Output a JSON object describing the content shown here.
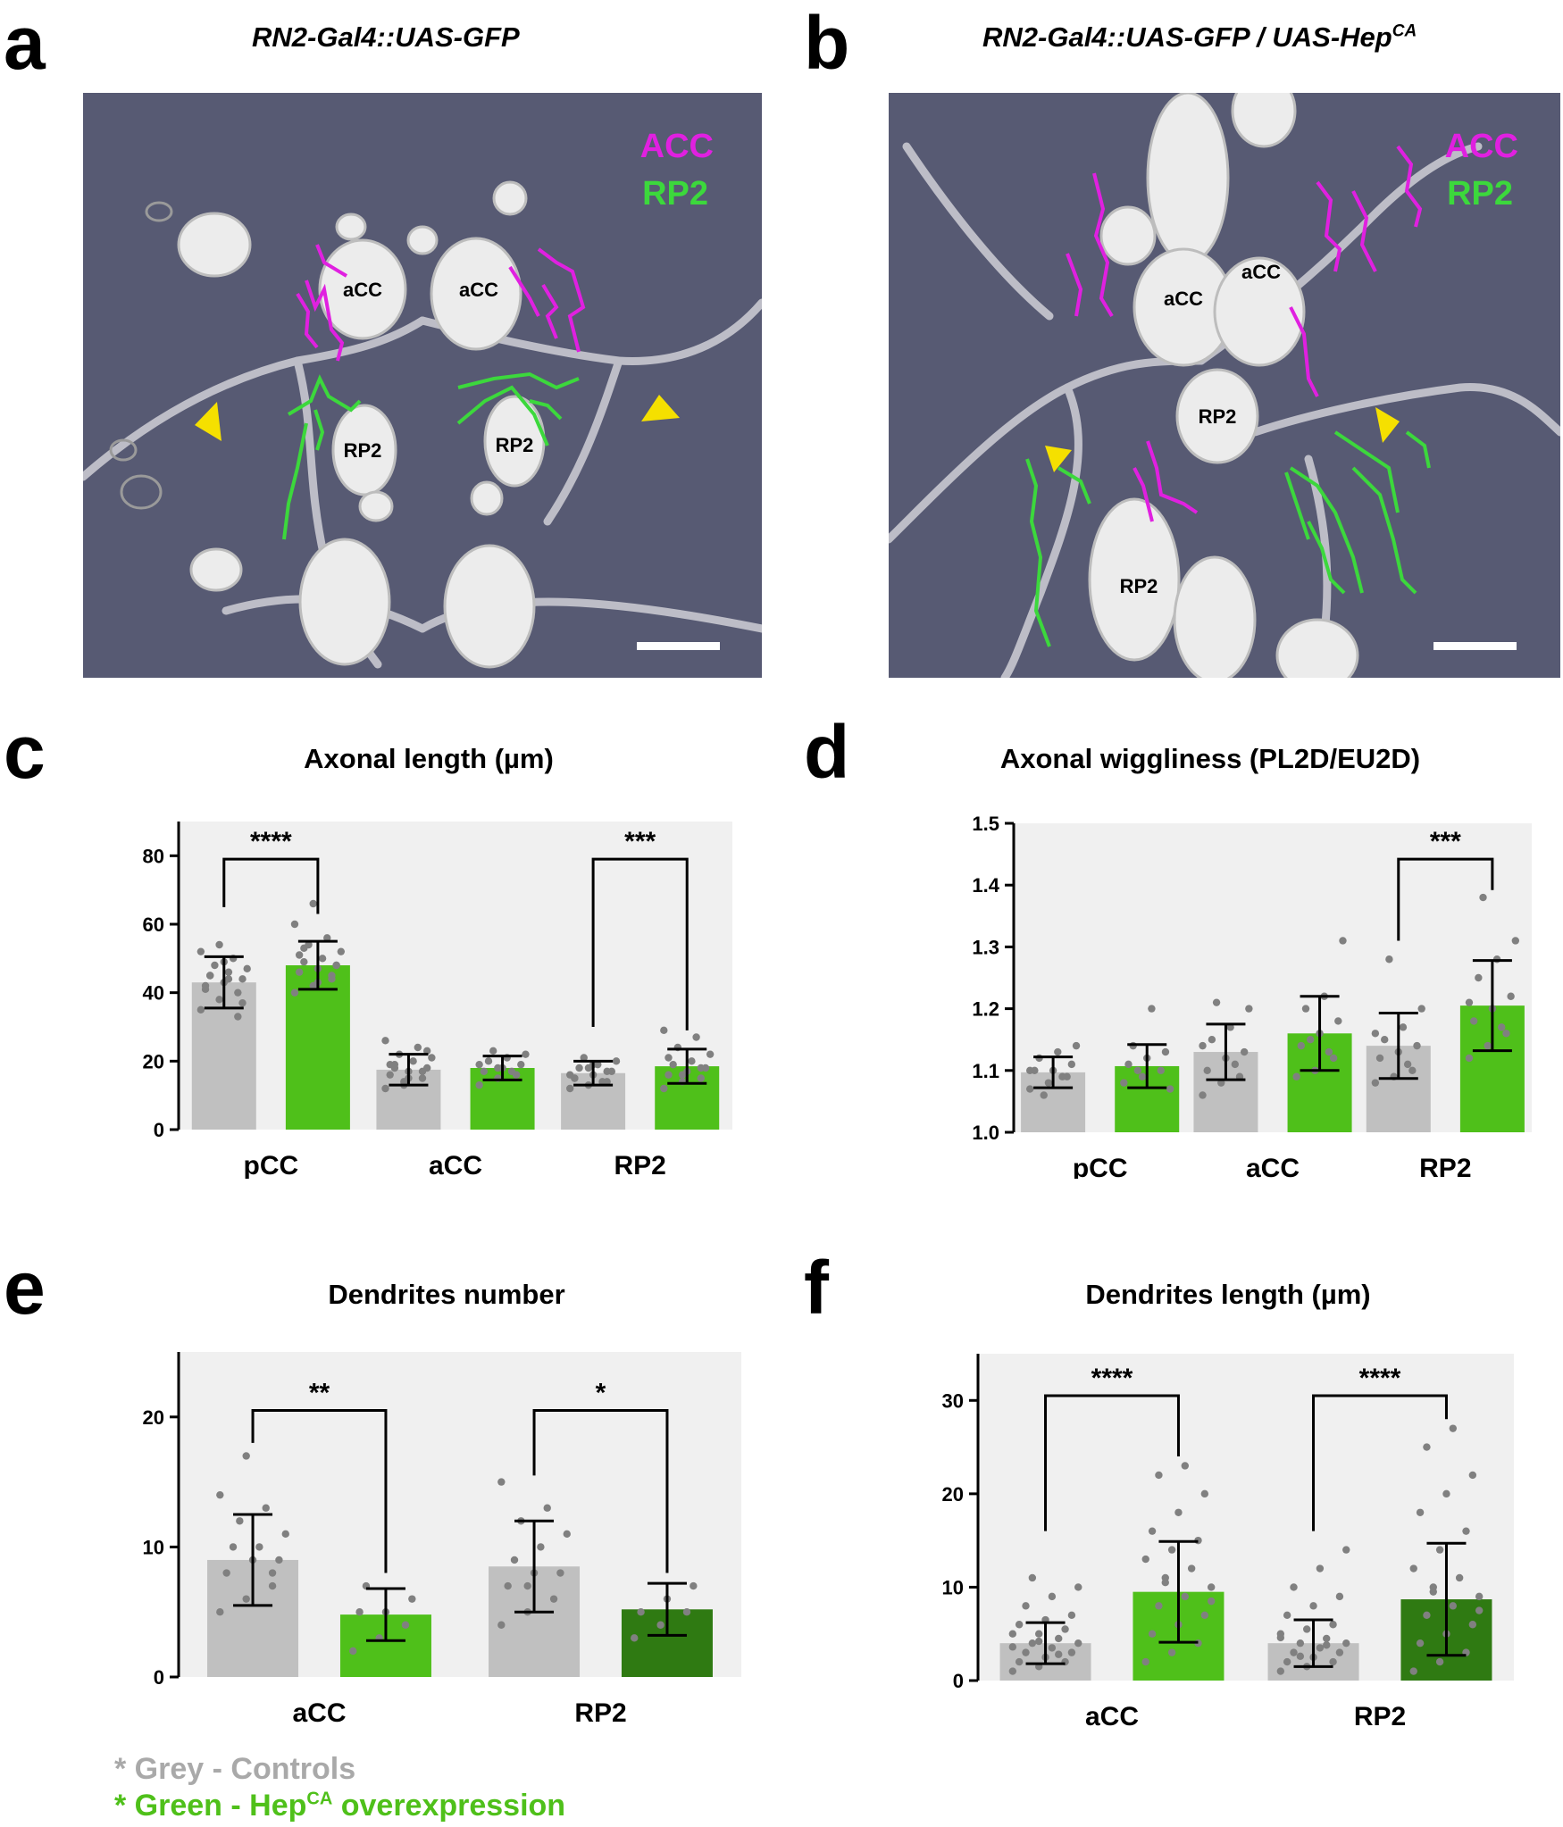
{
  "panels": {
    "a": {
      "letter": "a",
      "title": "RN2-Gal4::UAS-GFP",
      "labels": {
        "cell1": "aCC",
        "cell2": "aCC",
        "cell3": "RP2",
        "cell4": "RP2"
      },
      "legend_acc": "ACC",
      "legend_rp2": "RP2"
    },
    "b": {
      "letter": "b",
      "title_main": "RN2-Gal4::UAS-GFP /  UAS-Hep",
      "title_sup": "CA",
      "labels": {
        "cell1": "aCC",
        "cell2": "aCC",
        "cell3": "RP2",
        "cell4": "RP2"
      },
      "legend_acc": "ACC",
      "legend_rp2": "RP2"
    }
  },
  "colors": {
    "control_grey": "#c0c0c0",
    "green": "#4fc01a",
    "dark_green": "#2f7a12",
    "dots": "#808080",
    "magenta": "#e020e0",
    "gfp_green": "#3cd83c",
    "arrow_yellow": "#f5e000",
    "plot_bg": "#f0f0f0"
  },
  "chart_data": [
    {
      "letter": "c",
      "type": "bar",
      "title": "Axonal length (µm)",
      "categories": [
        "pCC",
        "aCC",
        "RP2"
      ],
      "ylim": [
        0,
        90
      ],
      "yticks": [
        "0",
        "20",
        "40",
        "60",
        "80"
      ],
      "series": [
        {
          "name": "Controls",
          "values": [
            43,
            17.5,
            16.5
          ],
          "sd": [
            7.5,
            4.5,
            3.5
          ],
          "color": "#c0c0c0",
          "points": [
            [
              35,
              38,
              40,
              42,
              43,
              44,
              45,
              46,
              47,
              48,
              50,
              52,
              54,
              33,
              41,
              49,
              37,
              45,
              44
            ],
            [
              12,
              14,
              15,
              16,
              17,
              18,
              19,
              20,
              21,
              22,
              24,
              26,
              13,
              17,
              19,
              15,
              23,
              18
            ],
            [
              12,
              13,
              14,
              15,
              16,
              17,
              18,
              19,
              20,
              21,
              14,
              16,
              18,
              17,
              15,
              19
            ]
          ]
        },
        {
          "name": "HepCA overexpression",
          "values": [
            48,
            18,
            18.5
          ],
          "sd": [
            7,
            3.5,
            5
          ],
          "color": "#4fc01a",
          "points": [
            [
              40,
              42,
              44,
              46,
              47,
              48,
              49,
              50,
              52,
              54,
              56,
              60,
              66,
              45,
              51,
              43,
              48,
              53
            ],
            [
              13,
              15,
              16,
              17,
              18,
              19,
              20,
              21,
              22,
              23,
              17,
              19,
              18,
              16
            ],
            [
              12,
              14,
              15,
              16,
              17,
              18,
              19,
              20,
              22,
              24,
              27,
              29,
              16,
              18,
              21
            ]
          ]
        }
      ],
      "brackets": [
        {
          "from": 0,
          "to": 0,
          "label": "****",
          "y_top": 79,
          "y_left": 65,
          "y_right": 63
        },
        {
          "from": 2,
          "to": 2,
          "label": "***",
          "y_top": 79,
          "y_left": 30,
          "y_right": 29
        }
      ]
    },
    {
      "letter": "d",
      "type": "bar",
      "title": "Axonal wiggliness (PL2D/EU2D)",
      "categories": [
        "pCC",
        "aCC",
        "RP2"
      ],
      "ylim": [
        1.0,
        1.5
      ],
      "yticks": [
        "1.0",
        "1.1",
        "1.2",
        "1.3",
        "1.4",
        "1.5"
      ],
      "series": [
        {
          "name": "Controls",
          "values": [
            1.097,
            1.13,
            1.14
          ],
          "sd": [
            0.025,
            0.045,
            0.053
          ],
          "color": "#c0c0c0",
          "points": [
            [
              1.07,
              1.08,
              1.09,
              1.1,
              1.1,
              1.11,
              1.12,
              1.13,
              1.14,
              1.06,
              1.09,
              1.1
            ],
            [
              1.06,
              1.08,
              1.09,
              1.1,
              1.12,
              1.13,
              1.15,
              1.17,
              1.2,
              1.21,
              1.11,
              1.14
            ],
            [
              1.08,
              1.09,
              1.1,
              1.12,
              1.13,
              1.14,
              1.15,
              1.17,
              1.2,
              1.28,
              1.11,
              1.16
            ]
          ]
        },
        {
          "name": "HepCA overexpression",
          "values": [
            1.107,
            1.16,
            1.205
          ],
          "sd": [
            0.035,
            0.06,
            0.073
          ],
          "color": "#4fc01a",
          "points": [
            [
              1.08,
              1.09,
              1.1,
              1.11,
              1.12,
              1.13,
              1.14,
              1.2,
              1.07,
              1.1
            ],
            [
              1.09,
              1.1,
              1.12,
              1.14,
              1.16,
              1.18,
              1.2,
              1.22,
              1.31,
              1.15,
              1.13
            ],
            [
              1.12,
              1.14,
              1.16,
              1.18,
              1.2,
              1.22,
              1.25,
              1.28,
              1.31,
              1.38,
              1.17,
              1.21
            ]
          ]
        }
      ],
      "brackets": [
        {
          "from": 2,
          "to": 2,
          "label": "***",
          "y_top": 1.442,
          "y_left": 1.31,
          "y_right": 1.392
        }
      ]
    },
    {
      "letter": "e",
      "type": "bar",
      "title": "Dendrites number",
      "categories": [
        "aCC",
        "RP2"
      ],
      "ylim": [
        0,
        25
      ],
      "yticks": [
        "0",
        "10",
        "20"
      ],
      "series": [
        {
          "name": "Controls",
          "values": [
            9,
            8.5
          ],
          "sd": [
            3.5,
            3.5
          ],
          "color": "#c0c0c0",
          "points": [
            [
              5,
              6,
              7,
              8,
              9,
              9,
              10,
              10,
              11,
              12,
              13,
              14,
              17,
              8
            ],
            [
              4,
              5,
              6,
              7,
              8,
              8,
              9,
              10,
              11,
              12,
              13,
              15,
              7
            ]
          ]
        },
        {
          "name": "HepCA overexpression",
          "values": [
            4.8,
            5.2
          ],
          "sd": [
            2,
            2
          ],
          "color": "#4fc01a",
          "points": [
            [
              2,
              3,
              4,
              5,
              5,
              6,
              7
            ],
            [
              3,
              4,
              5,
              5,
              6,
              7
            ]
          ],
          "colors": [
            "#4fc01a",
            "#2f7a12"
          ]
        }
      ],
      "brackets": [
        {
          "from": 0,
          "to": 0,
          "label": "**",
          "y_top": 20.5,
          "y_left": 18,
          "y_right": 8
        },
        {
          "from": 1,
          "to": 1,
          "label": "*",
          "y_top": 20.5,
          "y_left": 15.5,
          "y_right": 8
        }
      ]
    },
    {
      "letter": "f",
      "type": "bar",
      "title": "Dendrites length (µm)",
      "categories": [
        "aCC",
        "RP2"
      ],
      "ylim": [
        0,
        35
      ],
      "yticks": [
        "0",
        "10",
        "20",
        "30"
      ],
      "series": [
        {
          "name": "Controls",
          "values": [
            4,
            4
          ],
          "sd": [
            2.2,
            2.5
          ],
          "color": "#c0c0c0",
          "points": [
            [
              1,
              1.5,
              2,
              2,
              2.5,
              3,
              3,
              3.5,
              4,
              4,
              4.5,
              5,
              5,
              5.5,
              6,
              6.5,
              7,
              8,
              9,
              10,
              11,
              2.8,
              3.6,
              4.2
            ],
            [
              1,
              1.5,
              2,
              2,
              2.5,
              3,
              3,
              3.5,
              4,
              4,
              4.5,
              5,
              5.5,
              6,
              7,
              8,
              9,
              10,
              12,
              14,
              2.6,
              3.8,
              4.6
            ]
          ]
        },
        {
          "name": "HepCA overexpression",
          "values": [
            9.5,
            8.7
          ],
          "sd": [
            5.4,
            6
          ],
          "color": "#4fc01a",
          "points": [
            [
              2,
              3,
              4,
              5,
              6,
              7,
              8,
              9,
              10,
              11,
              12,
              13,
              14,
              15,
              16,
              18,
              20,
              22,
              23,
              8.5,
              10.5
            ],
            [
              1,
              2,
              3,
              4,
              5,
              6,
              7,
              8,
              9,
              10,
              11,
              12,
              14,
              16,
              18,
              20,
              22,
              25,
              27,
              7.5,
              9.5
            ]
          ],
          "colors": [
            "#4fc01a",
            "#2f7a12"
          ]
        }
      ],
      "brackets": [
        {
          "from": 0,
          "to": 0,
          "label": "****",
          "y_top": 30.5,
          "y_left": 16,
          "y_right": 24
        },
        {
          "from": 1,
          "to": 1,
          "label": "****",
          "y_top": 30.5,
          "y_left": 16,
          "y_right": 28
        }
      ]
    }
  ],
  "legend": {
    "grey": "* Grey - Controls",
    "green_main": "* Green - Hep",
    "green_sup": "CA",
    "green_tail": " overexpression"
  }
}
